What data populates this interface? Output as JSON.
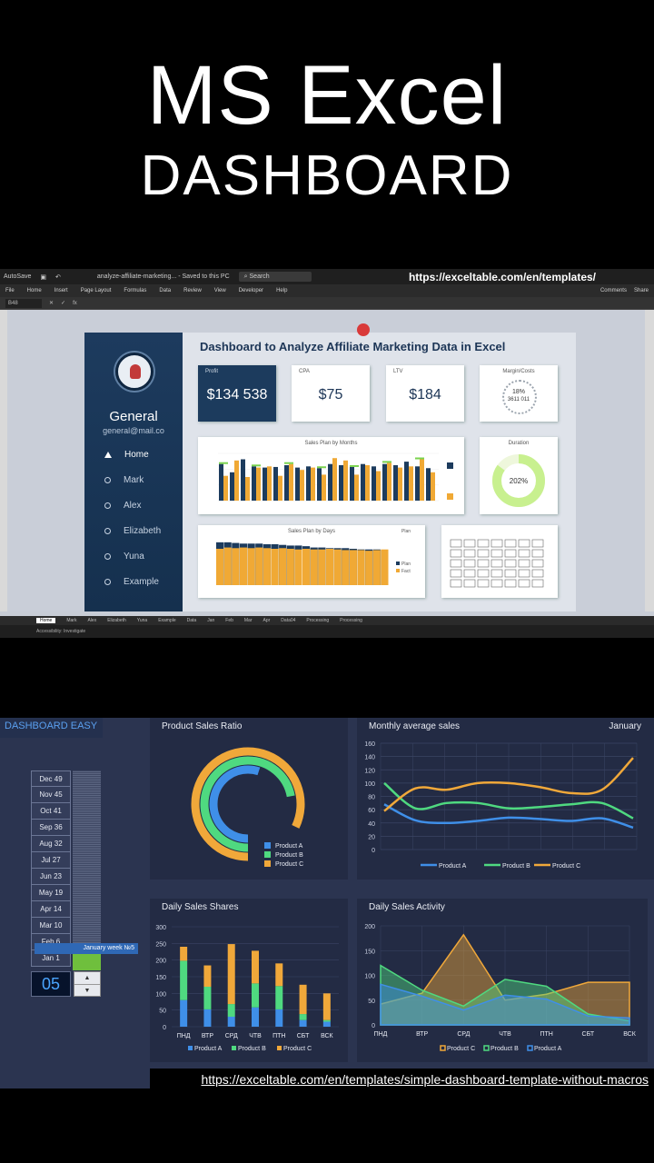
{
  "headline": {
    "line1": "MS Excel",
    "line2": "DASHBOARD"
  },
  "excel": {
    "titlebar": {
      "autosave": "AutoSave",
      "filename": "analyze-affiliate-marketing... - Saved to this PC",
      "search": "Search",
      "url": "https://exceltable.com/en/templates/"
    },
    "ribbon_tabs": [
      "File",
      "Home",
      "Insert",
      "Page Layout",
      "Formulas",
      "Data",
      "Review",
      "View",
      "Developer",
      "Help"
    ],
    "ribbon_right": [
      "Comments",
      "Share"
    ],
    "cellref": "B48",
    "dashboard": {
      "title": "Dashboard to Analyze Affiliate Marketing Data in Excel",
      "user_name": "General",
      "user_email": "general@mail.co",
      "nav": [
        "Home",
        "Mark",
        "Alex",
        "Elizabeth",
        "Yuna",
        "Example"
      ],
      "kpis": [
        {
          "label": "Profit",
          "value": "$134 538"
        },
        {
          "label": "CPA",
          "value": "$75"
        },
        {
          "label": "LTV",
          "value": "$184"
        }
      ],
      "margin": {
        "label": "Margin/Costs",
        "pct": "18%",
        "costs": "3611 011"
      },
      "duration": {
        "label": "Duration",
        "value": "202%",
        "level": 0.85
      },
      "sales_month": {
        "title": "Sales Plan by Months",
        "values_a": [
          62,
          48,
          70,
          58,
          56,
          57,
          60,
          56,
          58,
          55,
          62,
          60,
          57,
          62,
          58,
          62,
          60,
          66,
          58,
          55
        ],
        "values_b": [
          42,
          68,
          40,
          56,
          58,
          42,
          62,
          52,
          56,
          44,
          72,
          68,
          44,
          60,
          50,
          64,
          56,
          58,
          70,
          48
        ]
      },
      "sales_days": {
        "title": "Sales Plan by Days",
        "legend": [
          "Plan",
          "Fact"
        ],
        "values_plan": [
          66,
          66,
          65,
          64,
          64,
          64,
          63,
          63,
          62,
          61,
          61,
          60,
          58,
          58,
          57,
          57,
          57,
          56,
          55,
          55,
          55,
          54
        ],
        "values_fact": [
          56,
          58,
          57,
          58,
          57,
          58,
          57,
          56,
          57,
          56,
          55,
          56,
          55,
          55,
          56,
          55,
          54,
          54,
          54,
          53,
          54,
          55
        ]
      }
    },
    "sheet_tabs": [
      "Home",
      "Mark",
      "Alex",
      "Elizabeth",
      "Yuna",
      "Example",
      "Data",
      "Jan",
      "Feb",
      "Mar",
      "Apr",
      "Data04",
      "Processing",
      "Processing"
    ],
    "status": "Accessibility: Investigate"
  },
  "easy": {
    "title": "DASHBOARD EASY",
    "months": [
      "Dec 49",
      "Nov 45",
      "Oct 41",
      "Sep 36",
      "Aug 32",
      "Jul 27",
      "Jun 23",
      "May 19",
      "Apr 14",
      "Mar 10",
      "Feb 6",
      "Jan 1"
    ],
    "week_tooltip": "January week №5",
    "spinner_value": "05",
    "ratio": {
      "title": "Product Sales Ratio",
      "legend": [
        "Product A",
        "Product B",
        "Product C"
      ],
      "values": [
        0.55,
        0.72,
        0.82
      ]
    },
    "monthly": {
      "title": "Monthly average sales",
      "month": "January",
      "yticks": [
        0,
        20,
        40,
        60,
        80,
        100,
        120,
        140,
        160
      ],
      "series": [
        {
          "name": "Product A",
          "values": [
            68,
            44,
            40,
            43,
            48,
            46,
            43,
            47,
            33
          ]
        },
        {
          "name": "Product B",
          "values": [
            100,
            62,
            70,
            70,
            62,
            64,
            68,
            70,
            47
          ]
        },
        {
          "name": "Product C",
          "values": [
            58,
            92,
            90,
            100,
            100,
            94,
            85,
            90,
            138
          ]
        }
      ],
      "colors": [
        "#3f8fe8",
        "#4fd980",
        "#f0a83a"
      ]
    },
    "shares": {
      "title": "Daily Sales Shares",
      "categories": [
        "ПНД",
        "ВТР",
        "СРД",
        "ЧТВ",
        "ПТН",
        "СБТ",
        "ВСК"
      ],
      "yticks": [
        0,
        50,
        100,
        150,
        200,
        250,
        300
      ],
      "series": [
        {
          "name": "Product A",
          "values": [
            80,
            52,
            30,
            58,
            52,
            20,
            15
          ]
        },
        {
          "name": "Product B",
          "values": [
            118,
            68,
            38,
            72,
            70,
            18,
            5
          ]
        },
        {
          "name": "Product C",
          "values": [
            42,
            64,
            180,
            98,
            68,
            88,
            80
          ]
        }
      ]
    },
    "activity": {
      "title": "Daily Sales Activity",
      "categories": [
        "ПНД",
        "ВТР",
        "СРД",
        "ЧТВ",
        "ПТН",
        "СБТ",
        "ВСК"
      ],
      "yticks": [
        0,
        50,
        100,
        150,
        200
      ],
      "series": [
        {
          "name": "Product C",
          "values": [
            42,
            64,
            182,
            50,
            62,
            86,
            86
          ]
        },
        {
          "name": "Product B",
          "values": [
            120,
            70,
            38,
            92,
            78,
            22,
            8
          ]
        },
        {
          "name": "Product A",
          "values": [
            82,
            58,
            30,
            60,
            52,
            18,
            14
          ]
        }
      ]
    },
    "footer_url": "https://exceltable.com/en/templates/simple-dashboard-template-without-macros"
  }
}
